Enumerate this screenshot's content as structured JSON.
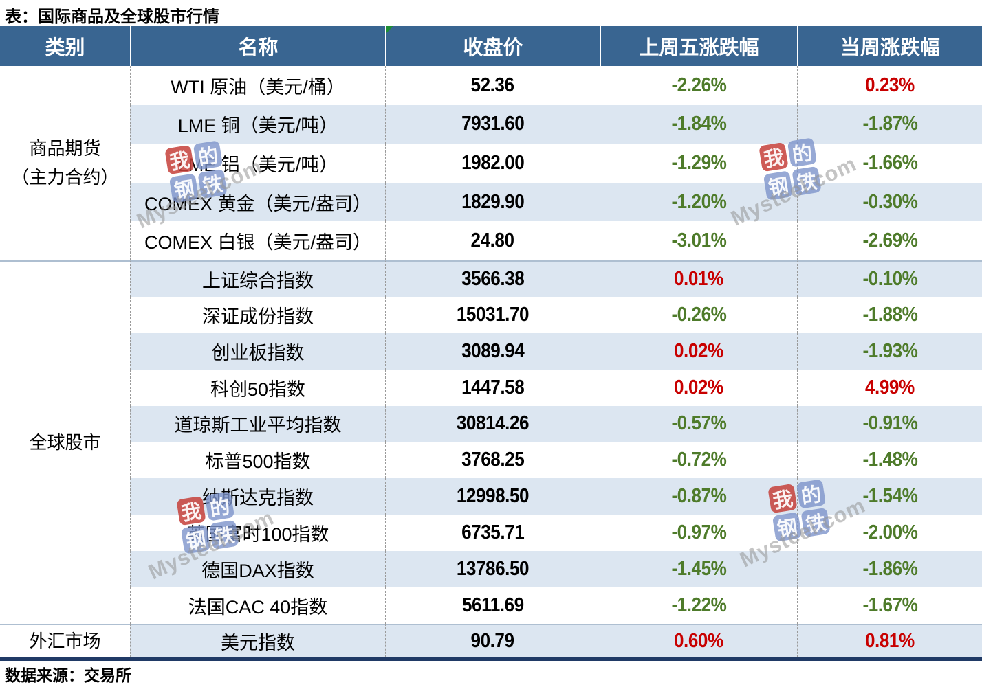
{
  "title": "表：国际商品及全球股市行情",
  "footer": "数据来源：交易所",
  "watermark": {
    "squares": [
      {
        "char": "我",
        "color": "rgba(198,64,58,0.85)"
      },
      {
        "char": "的",
        "color": "rgba(125,148,203,0.80)"
      },
      {
        "char": "钢",
        "color": "rgba(125,148,203,0.80)"
      },
      {
        "char": "铁",
        "color": "rgba(125,148,203,0.80)"
      }
    ],
    "text": "Mysteel.com"
  },
  "colors": {
    "header_bg": "#396591",
    "row_alt_bg": "#DCE6F1",
    "positive": "#C80000",
    "negative": "#4E7B2A",
    "section_border": "#AEBFD1",
    "bottom_border": "#203A66"
  },
  "chart_data": {
    "type": "table",
    "title": "表：国际商品及全球股市行情",
    "columns": [
      "类别",
      "名称",
      "收盘价",
      "上周五涨跌幅",
      "当周涨跌幅"
    ],
    "sections": [
      {
        "category": "商品期货\n（主力合约）",
        "rows": [
          {
            "name": "WTI 原油（美元/桶）",
            "close": "52.36",
            "last_friday": "-2.26%",
            "week": "0.23%"
          },
          {
            "name": "LME 铜（美元/吨）",
            "close": "7931.60",
            "last_friday": "-1.84%",
            "week": "-1.87%"
          },
          {
            "name": "LME 铝（美元/吨）",
            "close": "1982.00",
            "last_friday": "-1.29%",
            "week": "-1.66%"
          },
          {
            "name": "COMEX 黄金（美元/盎司）",
            "close": "1829.90",
            "last_friday": "-1.20%",
            "week": "-0.30%"
          },
          {
            "name": "COMEX 白银（美元/盎司）",
            "close": "24.80",
            "last_friday": "-3.01%",
            "week": "-2.69%"
          }
        ]
      },
      {
        "category": "全球股市",
        "rows": [
          {
            "name": "上证综合指数",
            "close": "3566.38",
            "last_friday": "0.01%",
            "week": "-0.10%"
          },
          {
            "name": "深证成份指数",
            "close": "15031.70",
            "last_friday": "-0.26%",
            "week": "-1.88%"
          },
          {
            "name": "创业板指数",
            "close": "3089.94",
            "last_friday": "0.02%",
            "week": "-1.93%"
          },
          {
            "name": "科创50指数",
            "close": "1447.58",
            "last_friday": "0.02%",
            "week": "4.99%"
          },
          {
            "name": "道琼斯工业平均指数",
            "close": "30814.26",
            "last_friday": "-0.57%",
            "week": "-0.91%"
          },
          {
            "name": "标普500指数",
            "close": "3768.25",
            "last_friday": "-0.72%",
            "week": "-1.48%"
          },
          {
            "name": "纳斯达克指数",
            "close": "12998.50",
            "last_friday": "-0.87%",
            "week": "-1.54%"
          },
          {
            "name": "英国富时100指数",
            "close": "6735.71",
            "last_friday": "-0.97%",
            "week": "-2.00%"
          },
          {
            "name": "德国DAX指数",
            "close": "13786.50",
            "last_friday": "-1.45%",
            "week": "-1.86%"
          },
          {
            "name": "法国CAC 40指数",
            "close": "5611.69",
            "last_friday": "-1.22%",
            "week": "-1.67%"
          }
        ]
      },
      {
        "category": "外汇市场",
        "rows": [
          {
            "name": "美元指数",
            "close": "90.79",
            "last_friday": "0.60%",
            "week": "0.81%"
          }
        ]
      }
    ],
    "legend": {
      "positive_color_meaning": "上涨（红色）",
      "negative_color_meaning": "下跌（绿色）"
    }
  }
}
